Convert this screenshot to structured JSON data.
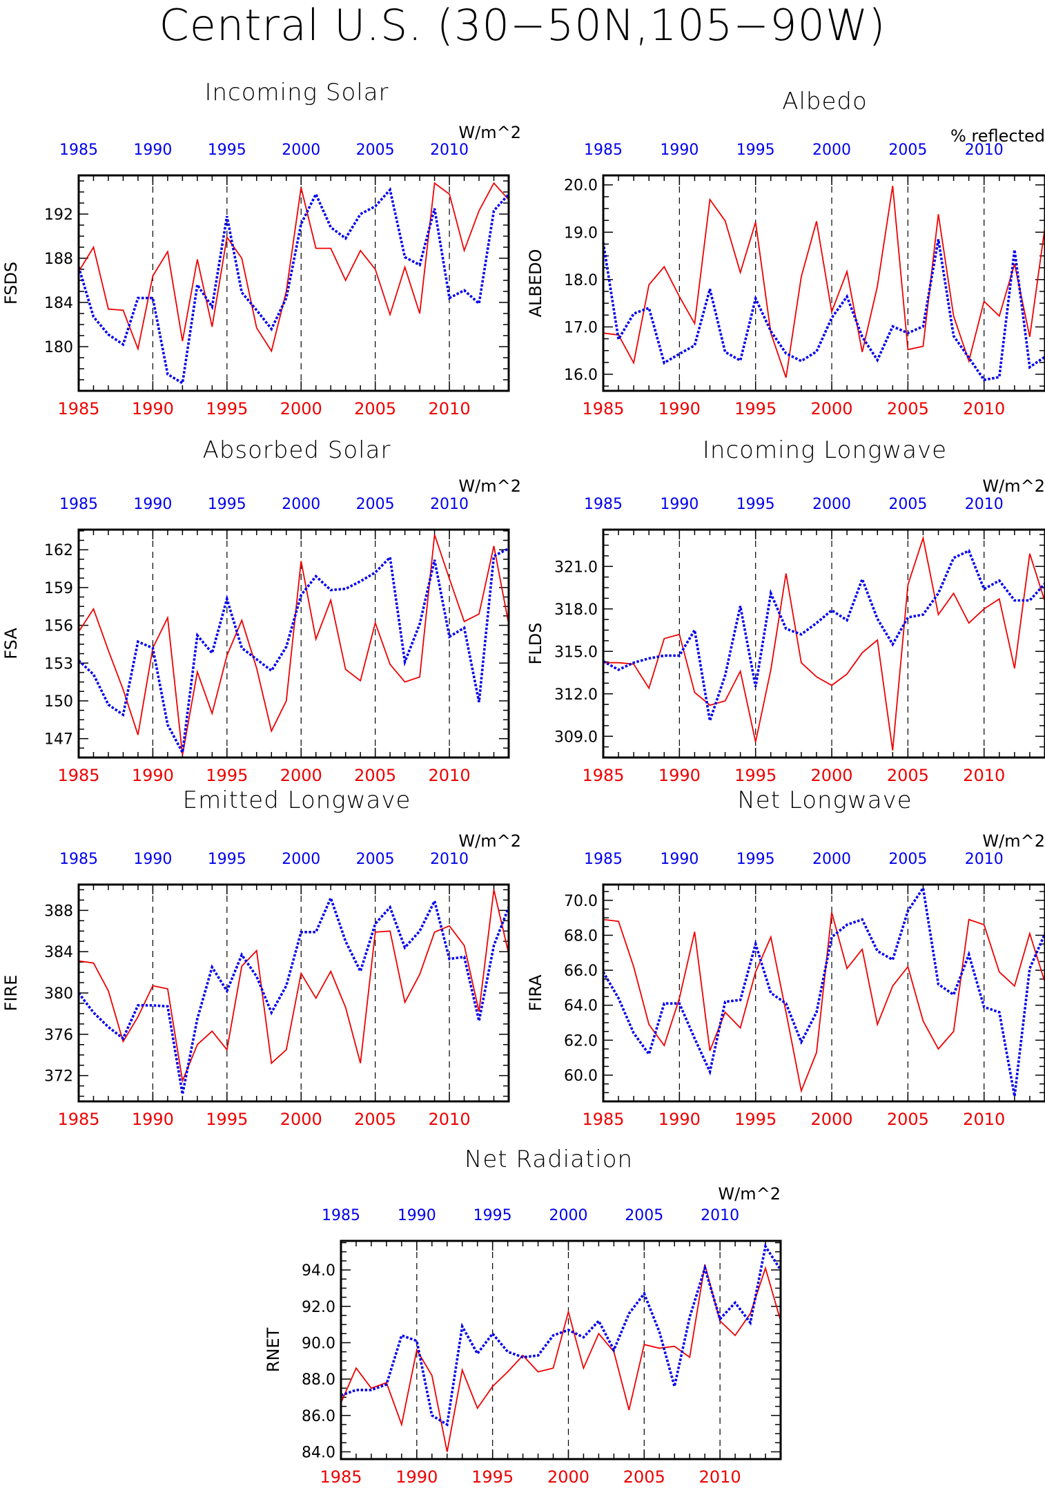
{
  "title": "Central U.S. (30−50N,105−90W)",
  "colors": {
    "series_red": "#ee0000",
    "series_blue": "#0000ee",
    "axis": "#000000"
  },
  "chart_data": [
    {
      "type": "line",
      "title": "Incoming Solar",
      "units": "W/m^2",
      "ylabel": "FSDS",
      "xlim": [
        1985,
        2014
      ],
      "ylim": [
        176.0,
        195.5
      ],
      "yticks": [
        180,
        184,
        188,
        192
      ],
      "ytick_labels": [
        "180",
        "184",
        "188",
        "192"
      ],
      "top_axis_labels": [
        "1985",
        "1990",
        "1995",
        "2000",
        "2005",
        "2010"
      ],
      "bottom_axis_labels": [
        "1985",
        "1990",
        "1995",
        "2000",
        "2005",
        "2010"
      ],
      "x": [
        1985,
        1986,
        1987,
        1988,
        1989,
        1990,
        1991,
        1992,
        1993,
        1994,
        1995,
        1996,
        1997,
        1998,
        1999,
        2000,
        2001,
        2002,
        2003,
        2004,
        2005,
        2006,
        2007,
        2008,
        2009,
        2010,
        2011,
        2012,
        2013,
        2014
      ],
      "series": [
        {
          "color": "red",
          "style": "solid",
          "values": [
            186.8,
            189.0,
            183.4,
            183.3,
            179.8,
            186.4,
            188.6,
            180.5,
            187.9,
            181.8,
            189.9,
            188.0,
            181.7,
            179.6,
            185.0,
            194.4,
            188.9,
            188.9,
            186.0,
            188.7,
            187.0,
            182.9,
            187.2,
            183.0,
            194.8,
            193.8,
            188.7,
            192.3,
            194.8,
            193.3
          ]
        },
        {
          "color": "blue",
          "style": "dotted",
          "values": [
            187.2,
            182.7,
            181.1,
            180.2,
            184.4,
            184.4,
            177.5,
            176.7,
            185.6,
            183.6,
            191.8,
            184.9,
            183.3,
            181.6,
            184.4,
            191.1,
            193.8,
            190.8,
            189.8,
            192.0,
            192.7,
            194.2,
            188.1,
            187.4,
            192.5,
            184.4,
            185.1,
            183.9,
            192.3,
            193.8
          ]
        }
      ]
    },
    {
      "type": "line",
      "title": "Albedo",
      "units": "% reflected",
      "ylabel": "ALBEDO",
      "xlim": [
        1985,
        2014
      ],
      "ylim": [
        15.65,
        20.2
      ],
      "yticks": [
        16,
        17,
        18,
        19,
        20
      ],
      "ytick_labels": [
        "16.0",
        "17.0",
        "18.0",
        "19.0",
        "20.0"
      ],
      "top_axis_labels": [
        "1985",
        "1990",
        "1995",
        "2000",
        "2005",
        "2010"
      ],
      "bottom_axis_labels": [
        "1985",
        "1990",
        "1995",
        "2000",
        "2005",
        "2010"
      ],
      "x": [
        1985,
        1986,
        1987,
        1988,
        1989,
        1990,
        1991,
        1992,
        1993,
        1994,
        1995,
        1996,
        1997,
        1998,
        1999,
        2000,
        2001,
        2002,
        2003,
        2004,
        2005,
        2006,
        2007,
        2008,
        2009,
        2010,
        2011,
        2012,
        2013,
        2014
      ],
      "series": [
        {
          "color": "red",
          "style": "solid",
          "values": [
            16.87,
            16.83,
            16.24,
            17.89,
            18.27,
            17.64,
            17.07,
            19.69,
            19.24,
            18.15,
            19.21,
            16.87,
            15.93,
            18.06,
            19.23,
            17.32,
            18.17,
            16.47,
            17.86,
            19.98,
            16.52,
            16.59,
            19.38,
            17.23,
            16.28,
            17.54,
            17.23,
            18.33,
            16.79,
            19.12
          ]
        },
        {
          "color": "blue",
          "style": "dotted",
          "values": [
            18.78,
            16.74,
            17.28,
            17.4,
            16.24,
            16.43,
            16.61,
            17.8,
            16.47,
            16.29,
            17.6,
            16.91,
            16.44,
            16.28,
            16.48,
            17.19,
            17.64,
            16.79,
            16.3,
            17.01,
            16.87,
            17.01,
            18.85,
            16.81,
            16.35,
            15.88,
            15.94,
            18.63,
            16.15,
            16.37
          ]
        }
      ]
    },
    {
      "type": "line",
      "title": "Absorbed Solar",
      "units": "W/m^2",
      "ylabel": "FSA",
      "xlim": [
        1985,
        2014
      ],
      "ylim": [
        145.5,
        163.6
      ],
      "yticks": [
        147,
        150,
        153,
        156,
        159,
        162
      ],
      "ytick_labels": [
        "147",
        "150",
        "153",
        "156",
        "159",
        "162"
      ],
      "top_axis_labels": [
        "1985",
        "1990",
        "1995",
        "2000",
        "2005",
        "2010"
      ],
      "bottom_axis_labels": [
        "1985",
        "1990",
        "1995",
        "2000",
        "2005",
        "2010"
      ],
      "x": [
        1985,
        1986,
        1987,
        1988,
        1989,
        1990,
        1991,
        1992,
        1993,
        1994,
        1995,
        1996,
        1997,
        1998,
        1999,
        2000,
        2001,
        2002,
        2003,
        2004,
        2005,
        2006,
        2007,
        2008,
        2009,
        2010,
        2011,
        2012,
        2013,
        2014
      ],
      "series": [
        {
          "color": "red",
          "style": "solid",
          "values": [
            155.5,
            157.3,
            154.0,
            150.9,
            147.3,
            154.2,
            156.6,
            145.7,
            152.3,
            149.0,
            153.6,
            156.4,
            152.6,
            147.6,
            150.0,
            161.1,
            154.9,
            158.0,
            152.5,
            151.6,
            156.2,
            152.9,
            151.5,
            151.9,
            163.2,
            159.7,
            156.3,
            156.9,
            162.3,
            156.1
          ]
        },
        {
          "color": "blue",
          "style": "dotted",
          "values": [
            153.2,
            152.1,
            149.7,
            148.9,
            154.7,
            154.2,
            148.1,
            145.9,
            155.2,
            153.8,
            158.1,
            154.2,
            153.3,
            152.4,
            154.3,
            158.4,
            159.9,
            158.8,
            158.9,
            159.5,
            160.2,
            161.4,
            153.1,
            156.1,
            161.2,
            155.1,
            155.8,
            149.9,
            161.5,
            162.1
          ]
        }
      ]
    },
    {
      "type": "line",
      "title": "Incoming Longwave",
      "units": "W/m^2",
      "ylabel": "FLDS",
      "xlim": [
        1985,
        2014
      ],
      "ylim": [
        307.5,
        323.6
      ],
      "yticks": [
        309,
        312,
        315,
        318,
        321
      ],
      "ytick_labels": [
        "309.0",
        "312.0",
        "315.0",
        "318.0",
        "321.0"
      ],
      "top_axis_labels": [
        "1985",
        "1990",
        "1995",
        "2000",
        "2005",
        "2010"
      ],
      "bottom_axis_labels": [
        "1985",
        "1990",
        "1995",
        "2000",
        "2005",
        "2010"
      ],
      "x": [
        1985,
        1986,
        1987,
        1988,
        1989,
        1990,
        1991,
        1992,
        1993,
        1994,
        1995,
        1996,
        1997,
        1998,
        1999,
        2000,
        2001,
        2002,
        2003,
        2004,
        2005,
        2006,
        2007,
        2008,
        2009,
        2010,
        2011,
        2012,
        2013,
        2014
      ],
      "series": [
        {
          "color": "red",
          "style": "solid",
          "values": [
            314.2,
            314.2,
            314.1,
            312.4,
            315.9,
            316.2,
            312.1,
            311.2,
            311.5,
            313.6,
            308.6,
            313.7,
            320.5,
            314.2,
            313.2,
            312.6,
            313.4,
            314.9,
            315.8,
            308.0,
            319.7,
            323.0,
            317.6,
            319.1,
            317.0,
            318.0,
            318.7,
            313.8,
            321.9,
            318.5
          ]
        },
        {
          "color": "blue",
          "style": "dotted",
          "values": [
            314.3,
            313.7,
            314.2,
            314.5,
            314.7,
            314.7,
            316.5,
            310.1,
            313.3,
            318.2,
            312.5,
            319.1,
            316.6,
            316.2,
            317.0,
            317.9,
            317.2,
            320.1,
            317.3,
            315.5,
            317.4,
            317.6,
            319.1,
            321.6,
            322.1,
            319.4,
            320.0,
            318.6,
            318.6,
            319.8
          ]
        }
      ]
    },
    {
      "type": "line",
      "title": "Emitted Longwave",
      "units": "W/m^2",
      "ylabel": "FIRE",
      "xlim": [
        1985,
        2014
      ],
      "ylim": [
        369.5,
        390.5
      ],
      "yticks": [
        372,
        376,
        380,
        384,
        388
      ],
      "ytick_labels": [
        "372",
        "376",
        "380",
        "384",
        "388"
      ],
      "top_axis_labels": [
        "1985",
        "1990",
        "1995",
        "2000",
        "2005",
        "2010"
      ],
      "bottom_axis_labels": [
        "1985",
        "1990",
        "1995",
        "2000",
        "2005",
        "2010"
      ],
      "x": [
        1985,
        1986,
        1987,
        1988,
        1989,
        1990,
        1991,
        1992,
        1993,
        1994,
        1995,
        1996,
        1997,
        1998,
        1999,
        2000,
        2001,
        2002,
        2003,
        2004,
        2005,
        2006,
        2007,
        2008,
        2009,
        2010,
        2011,
        2012,
        2013,
        2014
      ],
      "series": [
        {
          "color": "red",
          "style": "solid",
          "values": [
            383.1,
            382.9,
            380.2,
            375.3,
            377.7,
            380.7,
            380.4,
            371.5,
            375.0,
            376.3,
            374.5,
            382.6,
            384.1,
            373.2,
            374.5,
            381.9,
            379.5,
            382.1,
            378.6,
            373.2,
            385.9,
            386.0,
            379.1,
            381.8,
            385.9,
            386.5,
            384.6,
            378.2,
            390.0,
            383.8
          ]
        },
        {
          "color": "blue",
          "style": "dotted",
          "values": [
            380.0,
            378.1,
            376.7,
            375.6,
            378.8,
            378.8,
            378.7,
            370.2,
            377.5,
            382.5,
            380.2,
            383.7,
            381.6,
            378.1,
            380.7,
            385.9,
            385.9,
            389.2,
            385.0,
            382.1,
            386.7,
            388.3,
            384.4,
            386.0,
            388.9,
            383.3,
            383.5,
            377.3,
            384.6,
            388.3
          ]
        }
      ]
    },
    {
      "type": "line",
      "title": "Net Longwave",
      "units": "W/m^2",
      "ylabel": "FIRA",
      "xlim": [
        1985,
        2014
      ],
      "ylim": [
        58.5,
        70.9
      ],
      "yticks": [
        60,
        62,
        64,
        66,
        68,
        70
      ],
      "ytick_labels": [
        "60.0",
        "62.0",
        "64.0",
        "66.0",
        "68.0",
        "70.0"
      ],
      "top_axis_labels": [
        "1985",
        "1990",
        "1995",
        "2000",
        "2005",
        "2010"
      ],
      "bottom_axis_labels": [
        "1985",
        "1990",
        "1995",
        "2000",
        "2005",
        "2010"
      ],
      "x": [
        1985,
        1986,
        1987,
        1988,
        1989,
        1990,
        1991,
        1992,
        1993,
        1994,
        1995,
        1996,
        1997,
        1998,
        1999,
        2000,
        2001,
        2002,
        2003,
        2004,
        2005,
        2006,
        2007,
        2008,
        2009,
        2010,
        2011,
        2012,
        2013,
        2014
      ],
      "series": [
        {
          "color": "red",
          "style": "solid",
          "values": [
            68.9,
            68.8,
            66.2,
            62.9,
            61.7,
            64.4,
            68.2,
            61.4,
            63.6,
            62.7,
            65.9,
            67.9,
            63.6,
            59.1,
            61.3,
            69.3,
            66.1,
            67.2,
            62.9,
            65.1,
            66.2,
            63.1,
            61.5,
            62.5,
            68.9,
            68.6,
            65.9,
            65.1,
            68.1,
            65.3
          ]
        },
        {
          "color": "blue",
          "style": "dotted",
          "values": [
            65.9,
            64.4,
            62.4,
            61.2,
            64.1,
            64.1,
            62.1,
            60.2,
            64.2,
            64.3,
            67.5,
            64.7,
            64.1,
            61.9,
            63.6,
            67.9,
            68.6,
            68.9,
            67.1,
            66.6,
            69.4,
            70.7,
            65.2,
            64.6,
            66.9,
            63.9,
            63.6,
            58.8,
            66.1,
            68.1
          ]
        }
      ]
    },
    {
      "type": "line",
      "title": "Net Radiation",
      "units": "W/m^2",
      "ylabel": "RNET",
      "xlim": [
        1985,
        2014
      ],
      "ylim": [
        83.6,
        95.6
      ],
      "yticks": [
        84,
        86,
        88,
        90,
        92,
        94
      ],
      "ytick_labels": [
        "84.0",
        "86.0",
        "88.0",
        "90.0",
        "92.0",
        "94.0"
      ],
      "top_axis_labels": [
        "1985",
        "1990",
        "1995",
        "2000",
        "2005",
        "2010"
      ],
      "bottom_axis_labels": [
        "1985",
        "1990",
        "1995",
        "2000",
        "2005",
        "2010"
      ],
      "x": [
        1985,
        1986,
        1987,
        1988,
        1989,
        1990,
        1991,
        1992,
        1993,
        1994,
        1995,
        1996,
        1997,
        1998,
        1999,
        2000,
        2001,
        2002,
        2003,
        2004,
        2005,
        2006,
        2007,
        2008,
        2009,
        2010,
        2011,
        2012,
        2013,
        2014
      ],
      "series": [
        {
          "color": "red",
          "style": "solid",
          "values": [
            86.7,
            88.6,
            87.5,
            87.8,
            85.5,
            89.6,
            88.2,
            84.0,
            88.5,
            86.4,
            87.6,
            88.4,
            89.3,
            88.4,
            88.6,
            91.7,
            88.6,
            90.5,
            89.5,
            86.3,
            89.9,
            89.7,
            89.8,
            89.2,
            94.3,
            91.2,
            90.4,
            91.6,
            94.1,
            91.2
          ]
        },
        {
          "color": "blue",
          "style": "dotted",
          "values": [
            87.1,
            87.4,
            87.4,
            87.7,
            90.4,
            90.1,
            86.0,
            85.5,
            90.9,
            89.4,
            90.5,
            89.5,
            89.2,
            89.3,
            90.4,
            90.7,
            90.3,
            91.2,
            89.6,
            91.6,
            92.7,
            90.6,
            87.6,
            91.4,
            94.1,
            91.3,
            92.2,
            91.1,
            95.3,
            94.0
          ]
        }
      ]
    }
  ]
}
